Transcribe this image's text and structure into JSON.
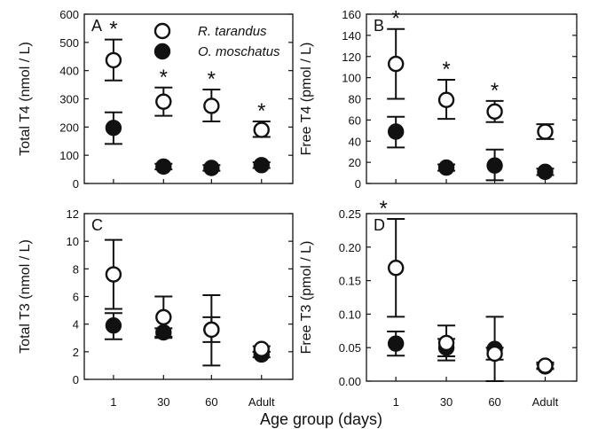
{
  "chart_data": {
    "type": "scatter",
    "xlabel": "Age group (days)",
    "categories": [
      "1",
      "30",
      "60",
      "Adult"
    ],
    "legend": {
      "placement": "top-right of panel A",
      "entries": [
        {
          "name": "R. tarandus",
          "marker": "open-circle"
        },
        {
          "name": "O. moschatus",
          "marker": "filled-circle"
        }
      ]
    },
    "panels": [
      {
        "label": "A",
        "ylabel": "Total T4 (nmol / L)",
        "ylim": [
          0,
          600
        ],
        "yticks": [
          "0",
          "100",
          "200",
          "300",
          "400",
          "500",
          "600"
        ],
        "series": [
          {
            "name": "R. tarandus",
            "values": [
              437,
              290,
              275,
              190
            ],
            "err_low": [
              365,
              240,
              220,
              165
            ],
            "err_high": [
              510,
              340,
              333,
              220
            ]
          },
          {
            "name": "O. moschatus",
            "values": [
              197,
              60,
              55,
              65
            ],
            "err_low": [
              140,
              50,
              45,
              55
            ],
            "err_high": [
              252,
              70,
              65,
              75
            ]
          }
        ],
        "significance": [
          "*",
          "*",
          "*",
          "*"
        ]
      },
      {
        "label": "B",
        "ylabel": "Free T4 (pmol / L)",
        "ylim": [
          0,
          160
        ],
        "yticks": [
          "0",
          "20",
          "40",
          "60",
          "80",
          "100",
          "120",
          "140",
          "160"
        ],
        "series": [
          {
            "name": "R. tarandus",
            "values": [
              113,
              79,
              68,
              49
            ],
            "err_low": [
              80,
              61,
              58,
              42
            ],
            "err_high": [
              146,
              98,
              78,
              56
            ]
          },
          {
            "name": "O. moschatus",
            "values": [
              49,
              15,
              17,
              11
            ],
            "err_low": [
              34,
              12,
              3,
              8
            ],
            "err_high": [
              63,
              18,
              32,
              14
            ]
          }
        ],
        "significance": [
          "*",
          "*",
          "*",
          ""
        ]
      },
      {
        "label": "C",
        "ylabel": "Total T3 (nmol / L)",
        "ylim": [
          0,
          12
        ],
        "yticks": [
          "0",
          "2",
          "4",
          "6",
          "8",
          "10",
          "12"
        ],
        "series": [
          {
            "name": "R. tarandus",
            "values": [
              7.6,
              4.5,
              3.6,
              2.2
            ],
            "err_low": [
              5.1,
              3.0,
              1.0,
              2.0
            ],
            "err_high": [
              10.1,
              6.0,
              6.1,
              2.4
            ]
          },
          {
            "name": "O. moschatus",
            "values": [
              3.9,
              3.4,
              3.6,
              1.8
            ],
            "err_low": [
              2.9,
              3.1,
              2.7,
              1.6
            ],
            "err_high": [
              4.8,
              3.7,
              4.5,
              2.0
            ]
          }
        ],
        "significance": [
          "",
          "",
          "",
          ""
        ]
      },
      {
        "label": "D",
        "ylabel": "Free T3 (pmol / L)",
        "ylim": [
          0,
          0.25
        ],
        "yticks": [
          "0.00",
          "0.05",
          "0.10",
          "0.15",
          "0.20",
          "0.25"
        ],
        "series": [
          {
            "name": "R. tarandus",
            "values": [
              0.169,
              0.057,
              0.041,
              0.023
            ],
            "err_low": [
              0.096,
              0.031,
              0.032,
              0.018
            ],
            "err_high": [
              0.242,
              0.083,
              0.05,
              0.028
            ]
          },
          {
            "name": "O. moschatus",
            "values": [
              0.056,
              0.05,
              0.048,
              0.022
            ],
            "err_low": [
              0.038,
              0.037,
              0.0,
              0.019
            ],
            "err_high": [
              0.074,
              0.063,
              0.096,
              0.025
            ]
          }
        ],
        "significance": [
          "*",
          "",
          "",
          ""
        ]
      }
    ]
  }
}
